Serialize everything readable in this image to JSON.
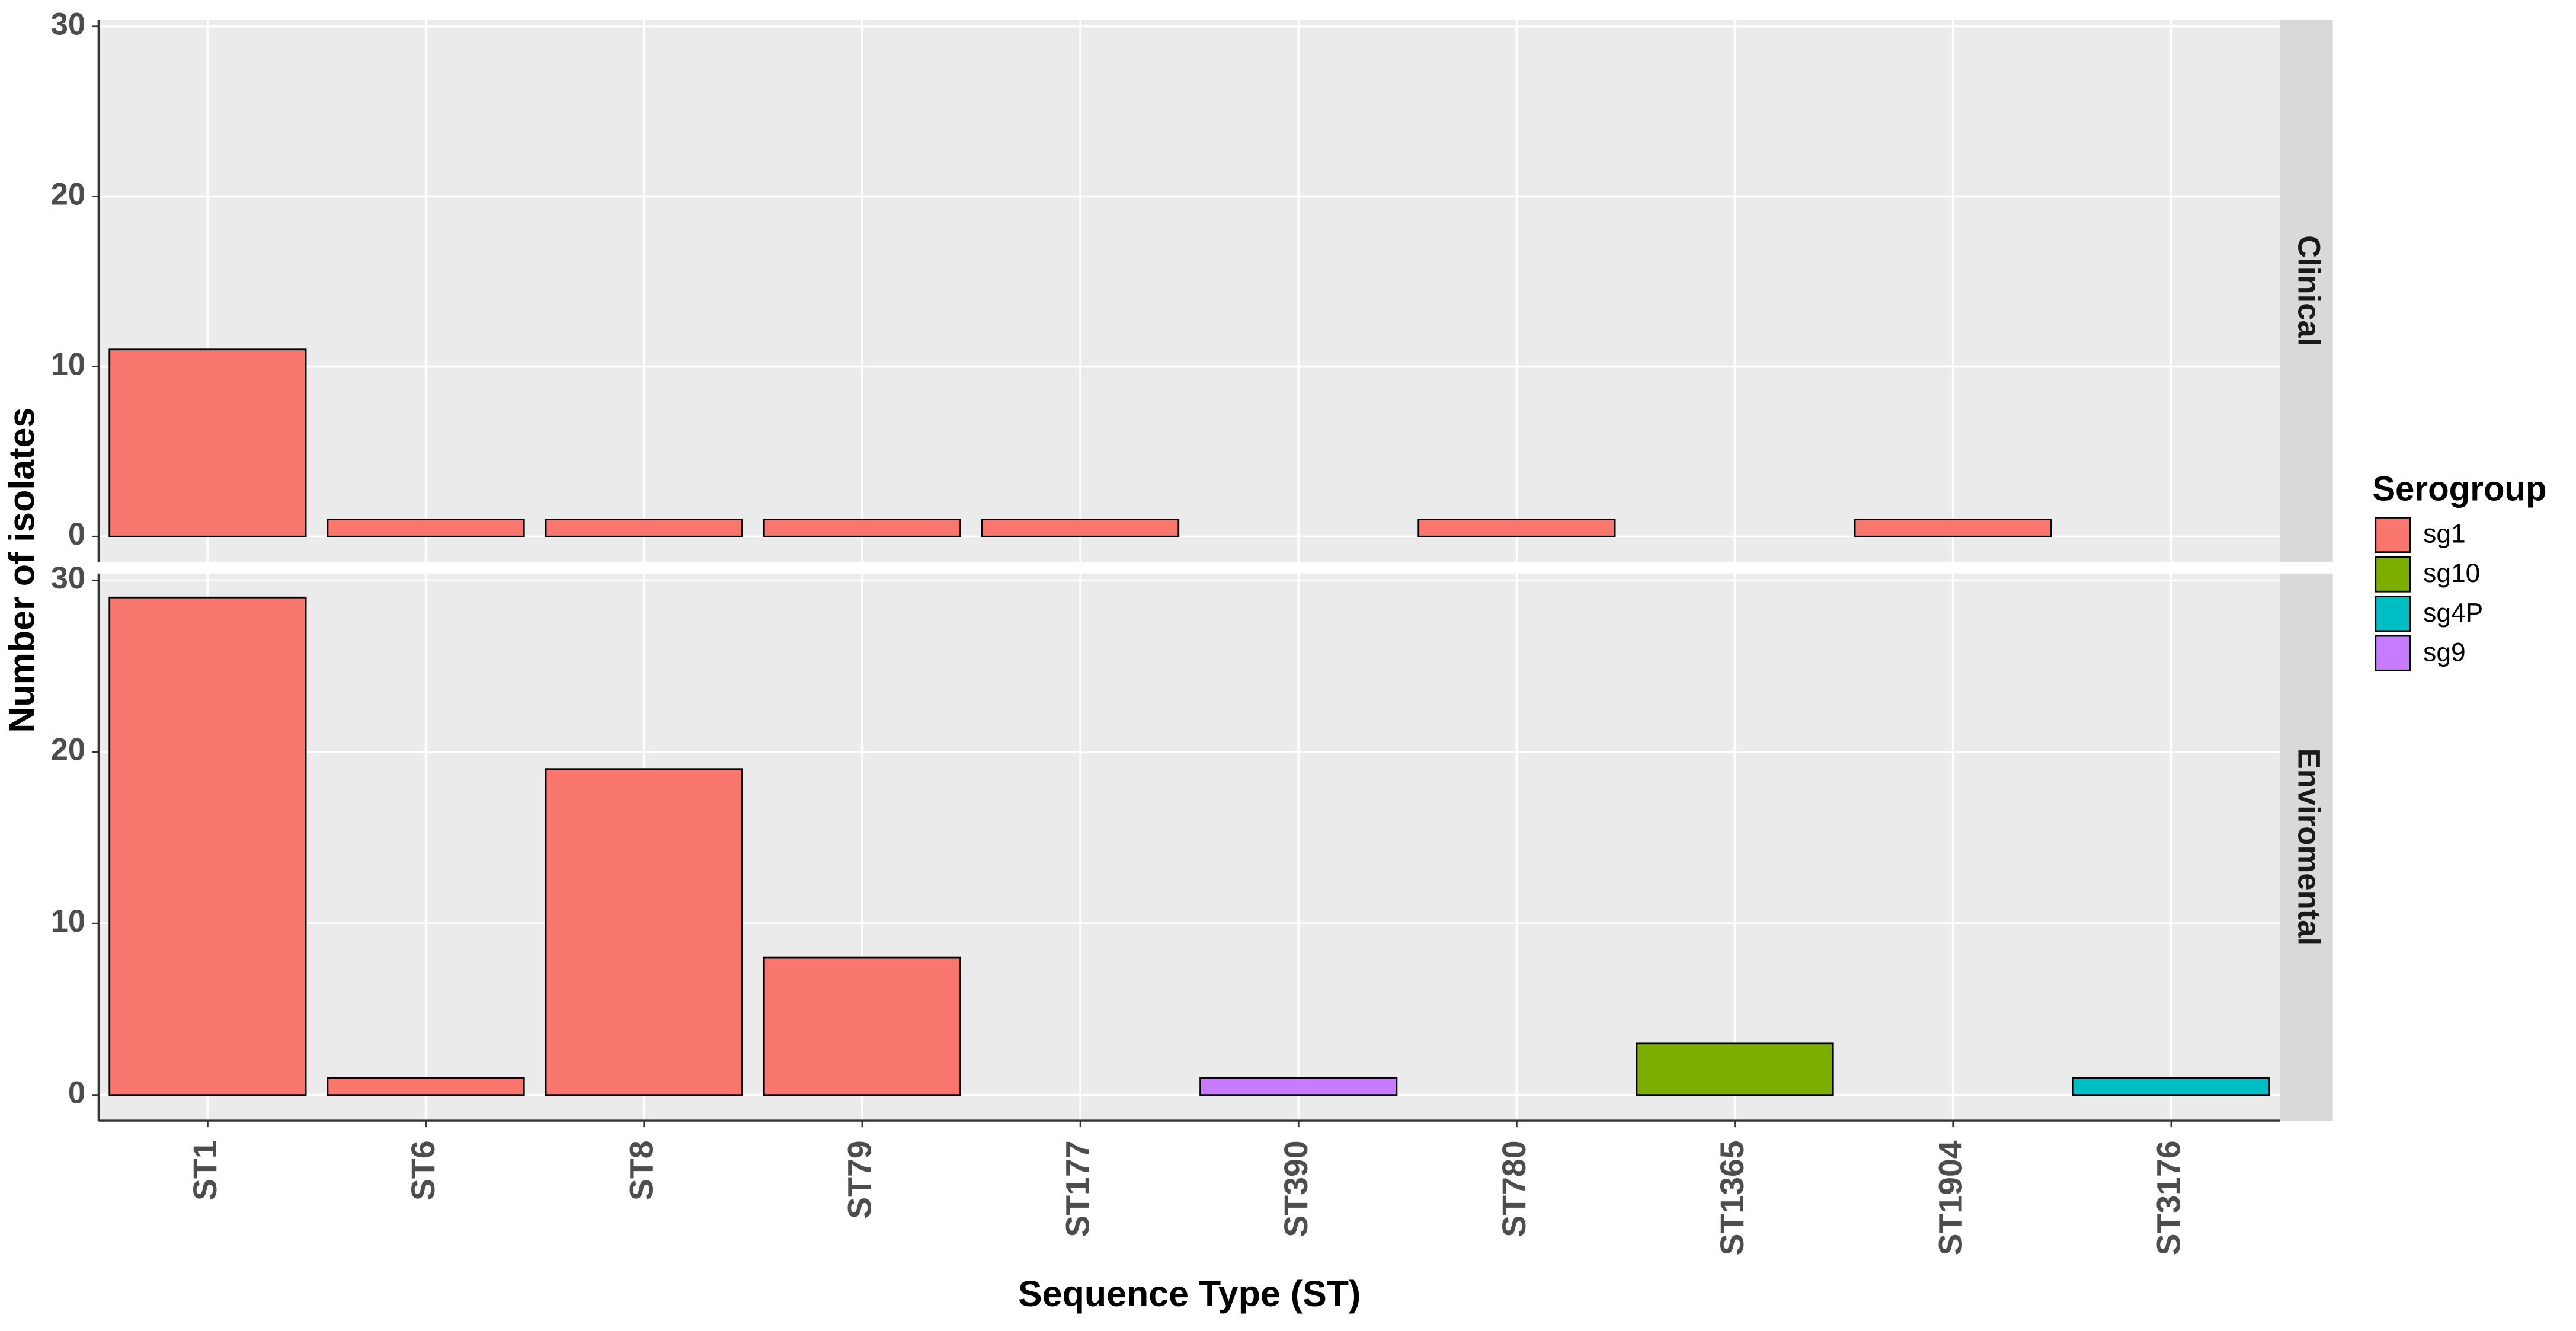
{
  "chart_data": {
    "type": "bar",
    "x_label": "Sequence Type (ST)",
    "y_label": "Number of isolates",
    "legend_title": "Serogroup",
    "categories": [
      "ST1",
      "ST6",
      "ST8",
      "ST79",
      "ST177",
      "ST390",
      "ST780",
      "ST1365",
      "ST1904",
      "ST3176"
    ],
    "ylim": [
      -1.5,
      30.4
    ],
    "yticks": [
      0,
      10,
      20,
      30
    ],
    "grid": true,
    "series": [
      {
        "name": "sg1",
        "color": "#F8766D"
      },
      {
        "name": "sg10",
        "color": "#7CAE00"
      },
      {
        "name": "sg4P",
        "color": "#00BFC4"
      },
      {
        "name": "sg9",
        "color": "#C77CFF"
      }
    ],
    "facets": [
      {
        "label": "Clinical",
        "values": [
          [
            11,
            1,
            1,
            1,
            1,
            null,
            1,
            null,
            1,
            null
          ],
          [
            null,
            null,
            null,
            null,
            null,
            null,
            null,
            null,
            null,
            null
          ],
          [
            null,
            null,
            null,
            null,
            null,
            null,
            null,
            null,
            null,
            null
          ],
          [
            null,
            null,
            null,
            null,
            null,
            null,
            null,
            null,
            null,
            null
          ]
        ]
      },
      {
        "label": "Enviromental",
        "values": [
          [
            29,
            1,
            19,
            8,
            null,
            null,
            null,
            null,
            null,
            null
          ],
          [
            null,
            null,
            null,
            null,
            null,
            null,
            null,
            3,
            null,
            null
          ],
          [
            null,
            null,
            null,
            null,
            null,
            null,
            null,
            null,
            null,
            1
          ],
          [
            null,
            null,
            null,
            null,
            null,
            1,
            null,
            null,
            null,
            null
          ]
        ]
      }
    ]
  }
}
